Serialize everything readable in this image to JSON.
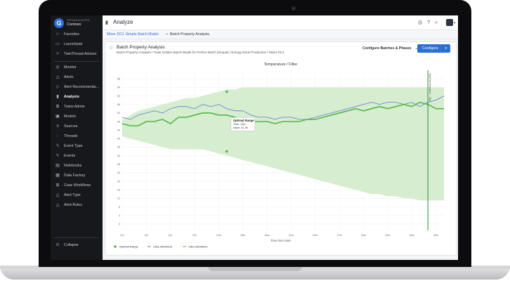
{
  "org": {
    "kicker": "ORGANIZATION",
    "name": "Contoso",
    "logo_letter": "G"
  },
  "nav": {
    "favorites": "Favorites",
    "launchpad": "Launchpad",
    "twinthread_advisor": "TwinThread Advisor",
    "monitor": "Monitor",
    "alerts": "Alerts",
    "alert_recommendations": "Alert Recommenda...",
    "analysis": "Analysis",
    "twins_admin": "Twins Admin",
    "models": "Models",
    "sources": "Sources",
    "threads": "Threads",
    "event_type": "Event Type",
    "events": "Events",
    "notebooks": "Notebooks",
    "data_factory": "Data Factory",
    "case_workflows": "Case Workflows",
    "alert_type": "Alert Type",
    "alert_rules": "Alert Rules",
    "collapse": "Collapse"
  },
  "topbar": {
    "title": "Analyze"
  },
  "breadcrumb": {
    "link": "Mixer DC1 Simple Batch Model",
    "separator": ">",
    "current": "Batch Property Analysis"
  },
  "card": {
    "title": "Batch Property Analysis",
    "subtitle": "Batch Property Analysis / Trials Golden Batch Model for Perfect Batch [Simple] / Energy Drink Production / Mixer DC1",
    "configure_batches": "Configure Batches & Phases",
    "configure_button": "Configure"
  },
  "colors": {
    "accent": "#2c6fd6",
    "sidebar_bg": "#17181c",
    "green": "#53b845",
    "range_fill": "#d6edd0",
    "blue": "#5a7bd6"
  },
  "chart_data": {
    "type": "line",
    "title": "Temperature / Filter",
    "xlabel": "Time from Start",
    "ylabel": "",
    "x_unit": "minutes",
    "xlim": [
      0,
      40
    ],
    "ylim": [
      -3,
      72
    ],
    "x_ticks": [
      {
        "x": 0,
        "label": "0m"
      },
      {
        "x": 3,
        "label": "3m"
      },
      {
        "x": 6,
        "label": "6m"
      },
      {
        "x": 9,
        "label": "9m"
      },
      {
        "x": 12,
        "label": "12m"
      },
      {
        "x": 15,
        "label": "15m"
      },
      {
        "x": 18,
        "label": "18m"
      },
      {
        "x": 21,
        "label": "21m"
      },
      {
        "x": 24,
        "label": "24m"
      },
      {
        "x": 27,
        "label": "27m"
      },
      {
        "x": 30,
        "label": "30m"
      },
      {
        "x": 33,
        "label": "33m"
      },
      {
        "x": 36,
        "label": "36m"
      },
      {
        "x": 39,
        "label": "39m"
      }
    ],
    "x_tick_labels": [
      "0m",
      "3m",
      "6m",
      "9m",
      "12m",
      "15m",
      "18m",
      "21m",
      "24m",
      "27m",
      "30m",
      "33m",
      "36m",
      "39m"
    ],
    "y_ticks": [
      0,
      4,
      8,
      12,
      16,
      20,
      24,
      28,
      32,
      36,
      40,
      44,
      48,
      52,
      56,
      60,
      64,
      68
    ],
    "grid": true,
    "legend_position": "bottom-left",
    "series": [
      {
        "name": "Optimal Range",
        "kind": "band",
        "color": "#53b845",
        "x": [
          0,
          1,
          2,
          3,
          4,
          5,
          6,
          7,
          8,
          9,
          10,
          11,
          12,
          13,
          14,
          15,
          16,
          17,
          18,
          19,
          20,
          21,
          22,
          23,
          24,
          25,
          26,
          27,
          28,
          29,
          30,
          31,
          32,
          33,
          34,
          35,
          36,
          37,
          38,
          39,
          40
        ],
        "upper": [
          49,
          51,
          53,
          54,
          55,
          56,
          57,
          58,
          59,
          59,
          60,
          61,
          62,
          63,
          63,
          64,
          64,
          64,
          64,
          64,
          64,
          64,
          64,
          64,
          64,
          64,
          64,
          64,
          64,
          64,
          64,
          64,
          64,
          64,
          64,
          64,
          64,
          64,
          64,
          64,
          64
        ],
        "lower": [
          41,
          40,
          39,
          38,
          37,
          36,
          35,
          35,
          35,
          35,
          35,
          34,
          33,
          32,
          31,
          30,
          29,
          28,
          27,
          26,
          25,
          24,
          23,
          22,
          21,
          20,
          19,
          18,
          17,
          16,
          15,
          14,
          14,
          13,
          13,
          12,
          12,
          11,
          11,
          11,
          11
        ]
      },
      {
        "name": "Ultra-26030014",
        "color": "#5a7bd6",
        "x": [
          0,
          1,
          2,
          3,
          4,
          5,
          6,
          7,
          8,
          9,
          10,
          11,
          12,
          13,
          14,
          15,
          16,
          17,
          18,
          19,
          20,
          21,
          22,
          23,
          24,
          25,
          26,
          27,
          28,
          29,
          30,
          31,
          32,
          33,
          34,
          35,
          36,
          37,
          38,
          39,
          40
        ],
        "y": [
          50,
          49,
          51,
          52,
          53,
          52,
          54,
          55,
          55,
          54,
          56,
          55,
          56,
          54,
          53,
          53,
          51,
          50,
          50,
          49,
          50,
          50,
          49,
          49,
          50,
          51,
          52,
          53,
          54,
          55,
          56,
          57,
          56,
          57,
          57,
          56,
          57,
          55,
          57,
          58,
          60
        ]
      },
      {
        "name": "Ultra-26030001",
        "color": "#53b845",
        "x": [
          0,
          1,
          2,
          3,
          4,
          5,
          6,
          7,
          8,
          9,
          10,
          11,
          12,
          13,
          14,
          15,
          16,
          17,
          18,
          19,
          20,
          21,
          22,
          23,
          24,
          25,
          26,
          27,
          28,
          29,
          30,
          31,
          32,
          33,
          34,
          35,
          36,
          37,
          38,
          39,
          40
        ],
        "y": [
          47,
          46,
          46,
          48,
          48,
          49,
          47,
          50,
          50,
          51,
          52,
          52,
          51,
          51,
          50,
          49,
          48,
          48,
          48,
          47,
          48,
          48,
          48,
          49,
          49,
          50,
          51,
          52,
          53,
          54,
          53,
          54,
          55,
          54,
          55,
          56,
          55,
          57,
          56,
          54,
          54
        ]
      }
    ],
    "tooltip": {
      "title": "Optimal Range",
      "time_label": "Time: 13m",
      "value_label": "Value: 41.30",
      "x": 13,
      "y": 41.3
    },
    "marker": {
      "x": 38,
      "label": "Optimal Duration - 38m"
    },
    "markers_points": [
      {
        "x": 13,
        "y": 62
      },
      {
        "x": 13,
        "y": 34
      }
    ]
  }
}
